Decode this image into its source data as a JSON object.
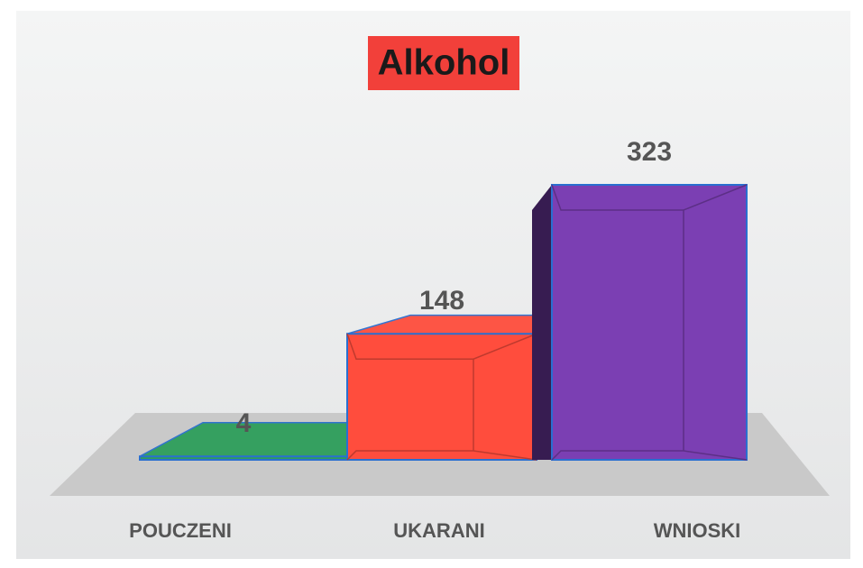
{
  "chart_data": {
    "type": "bar3d",
    "title": "Alkohol",
    "categories": [
      "POUCZENI",
      "UKARANI",
      "WNIOSKI"
    ],
    "values": [
      4,
      148,
      323
    ],
    "colors": [
      "#2e9e5b",
      "#ff4d3d",
      "#7b3fb3"
    ]
  }
}
